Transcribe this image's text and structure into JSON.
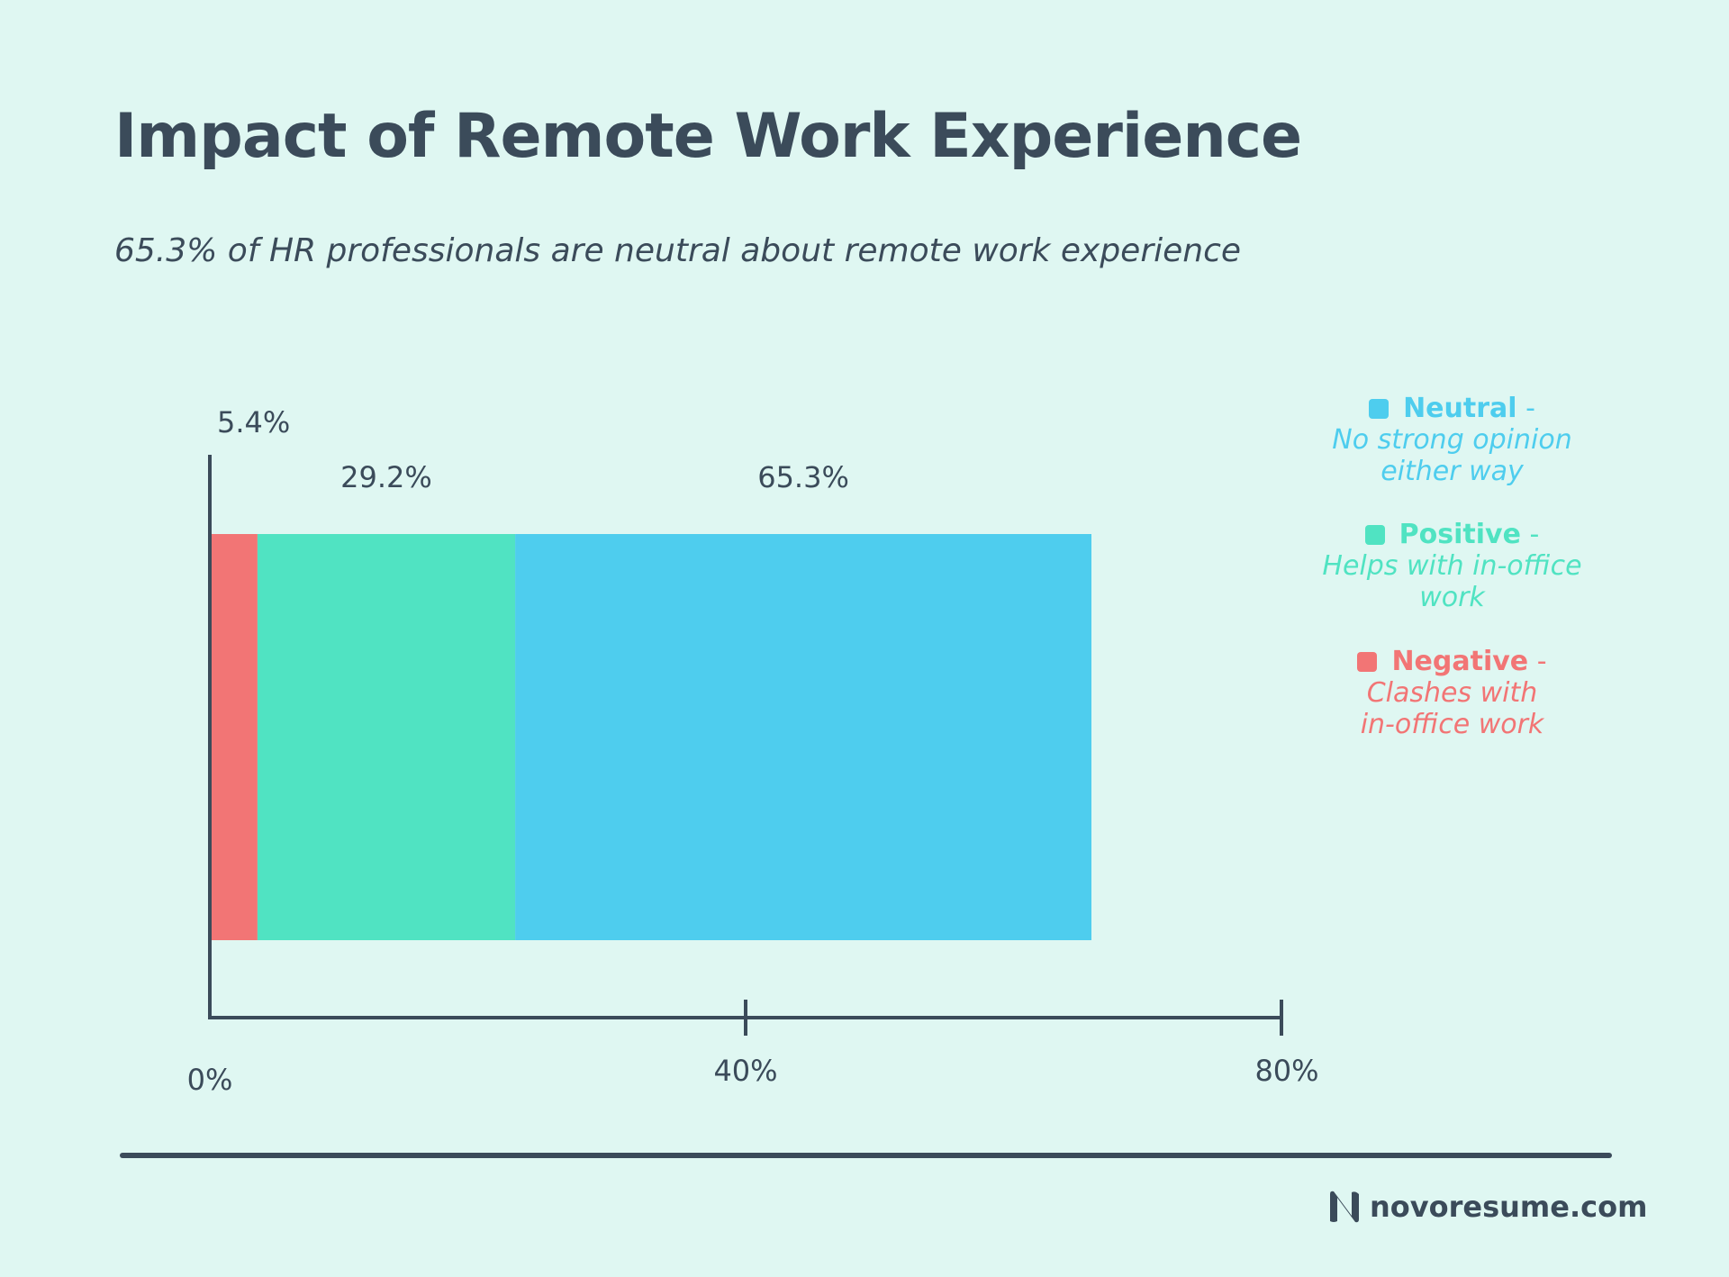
{
  "chart_data": {
    "type": "bar",
    "orientation": "horizontal-stacked",
    "title": "Impact of Remote Work Experience",
    "subtitle": "65.3% of HR professionals are neutral about remote work experience",
    "xlim": [
      0,
      80
    ],
    "x_ticks": [
      {
        "value": 0,
        "label": "0%"
      },
      {
        "value": 40,
        "label": "40%"
      },
      {
        "value": 80,
        "label": "80%"
      }
    ],
    "series": [
      {
        "name": "Negative",
        "value": 5.4,
        "label": "5.4%",
        "color": "#f27575"
      },
      {
        "name": "Positive",
        "value": 29.2,
        "label": "29.2%",
        "color": "#50e3c2"
      },
      {
        "name": "Neutral",
        "value": 65.3,
        "label": "65.3%",
        "color": "#4ecdee"
      }
    ],
    "legend": [
      {
        "name": "Neutral",
        "dash": "-",
        "description": [
          "No strong opinion",
          "either way"
        ],
        "color": "#4ecdee"
      },
      {
        "name": "Positive",
        "dash": "-",
        "description": [
          "Helps with in-office",
          "work"
        ],
        "color": "#50e3c2"
      },
      {
        "name": "Negative",
        "dash": "-",
        "description": [
          "Clashes with",
          "in-office work"
        ],
        "color": "#f27575"
      }
    ],
    "legend_position": "right"
  },
  "footer": {
    "brand": "novoresume.com"
  }
}
